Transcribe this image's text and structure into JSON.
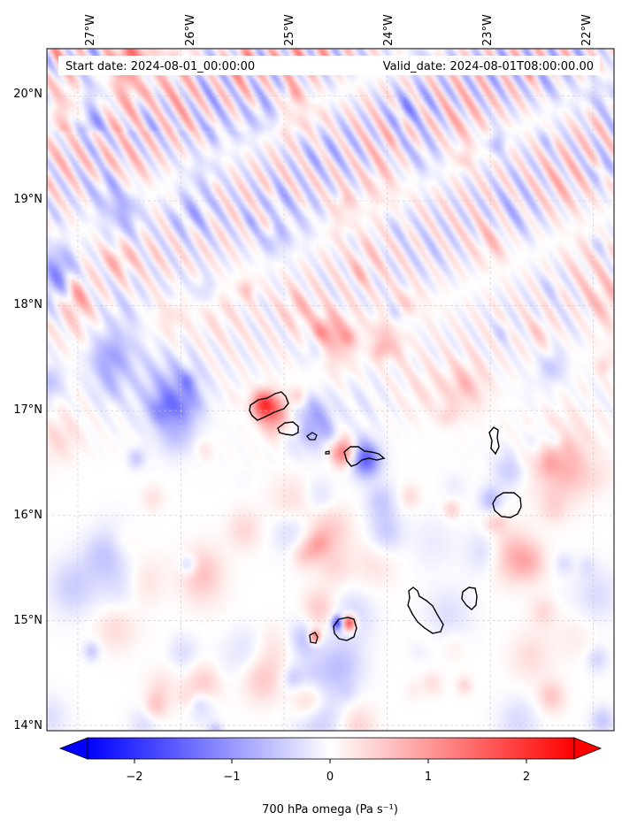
{
  "map": {
    "start_label": "Start date: 2024-08-01_00:00:00",
    "valid_label": "Valid_date: 2024-08-01T08:00:00.00",
    "lon_ticks": [
      "27°W",
      "26°W",
      "25°W",
      "24°W",
      "23°W",
      "22°W"
    ],
    "lat_ticks": [
      "20°N",
      "19°N",
      "18°N",
      "17°N",
      "16°N",
      "15°N",
      "14°N"
    ],
    "extent": {
      "lon_min": -27.3,
      "lon_max": -21.8,
      "lat_min": 13.95,
      "lat_max": 20.45
    },
    "islands": [
      "Santo Antão",
      "São Vicente",
      "Santa Luzia",
      "São Nicolau",
      "Sal",
      "Boa Vista",
      "Maio",
      "Santiago",
      "Fogo",
      "Brava"
    ],
    "field": "700 hPa omega",
    "colormap": "bwr",
    "colors": {
      "negative": "#0000ff",
      "zero": "#ffffff",
      "positive": "#ff0000",
      "coast": "#000000",
      "grid": "#bbbbbb"
    }
  },
  "colorbar": {
    "label": "700 hPa omega (Pa s⁻¹)",
    "ticks": [
      "−2",
      "−1",
      "0",
      "1",
      "2"
    ],
    "range": [
      -2.6,
      2.6
    ],
    "extend": "both"
  }
}
